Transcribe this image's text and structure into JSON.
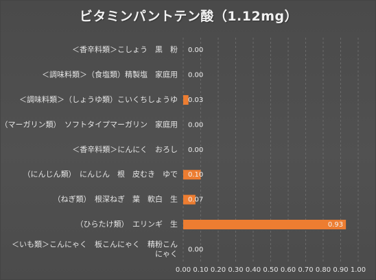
{
  "chart_data": {
    "type": "bar",
    "orientation": "horizontal",
    "title": "ビタミンパントテン酸（1.12mg）",
    "categories": [
      "＜香辛料類＞こしょう　黒　粉",
      "＜調味料類＞（食塩類）精製塩　家庭用",
      "＜調味料類＞（しょうゆ類）こいくちしょうゆ",
      "（マーガリン類）　ソフトタイプマーガリン　家庭用",
      "＜香辛料類＞にんにく　おろし",
      "（にんじん類）　にんじん　根　皮むき　ゆで",
      "（ねぎ類）　根深ねぎ　葉　軟白　生",
      "（ひらたけ類）　エリンギ　生",
      "＜いも類＞こんにゃく　板こんにゃく　精粉こんにゃく"
    ],
    "category_lines": [
      [
        "＜香辛料類＞こしょう　黒　粉"
      ],
      [
        "＜調味料類＞（食塩類）精製塩　家庭用"
      ],
      [
        "＜調味料類＞（しょうゆ類）こいくちしょうゆ"
      ],
      [
        "（マーガリン類）　ソフトタイプマーガリン　家庭用"
      ],
      [
        "＜香辛料類＞にんにく　おろし"
      ],
      [
        "（にんじん類）　にんじん　根　皮むき　ゆで"
      ],
      [
        "（ねぎ類）　根深ねぎ　葉　軟白　生"
      ],
      [
        "（ひらたけ類）　エリンギ　生"
      ],
      [
        "＜いも類＞こんにゃく　板こんにゃく　精粉こん",
        "にゃく"
      ]
    ],
    "values": [
      0.0,
      0.0,
      0.03,
      0.0,
      0.0,
      0.1,
      0.07,
      0.93,
      0.0
    ],
    "value_labels": [
      "0.00",
      "0.00",
      "0.03",
      "0.00",
      "0.00",
      "0.10",
      "0.07",
      "0.93",
      "0.00"
    ],
    "xlim": [
      0,
      1.0
    ],
    "x_ticks": [
      "0.00",
      "0.10",
      "0.20",
      "0.30",
      "0.40",
      "0.50",
      "0.60",
      "0.70",
      "0.80",
      "0.90",
      "1.00"
    ],
    "xlabel": "",
    "ylabel": "",
    "grid": true,
    "legend": "none",
    "bar_color": "#ed7d31",
    "background_color": "#4d4d4d",
    "text_color": "#e6e6e6"
  }
}
